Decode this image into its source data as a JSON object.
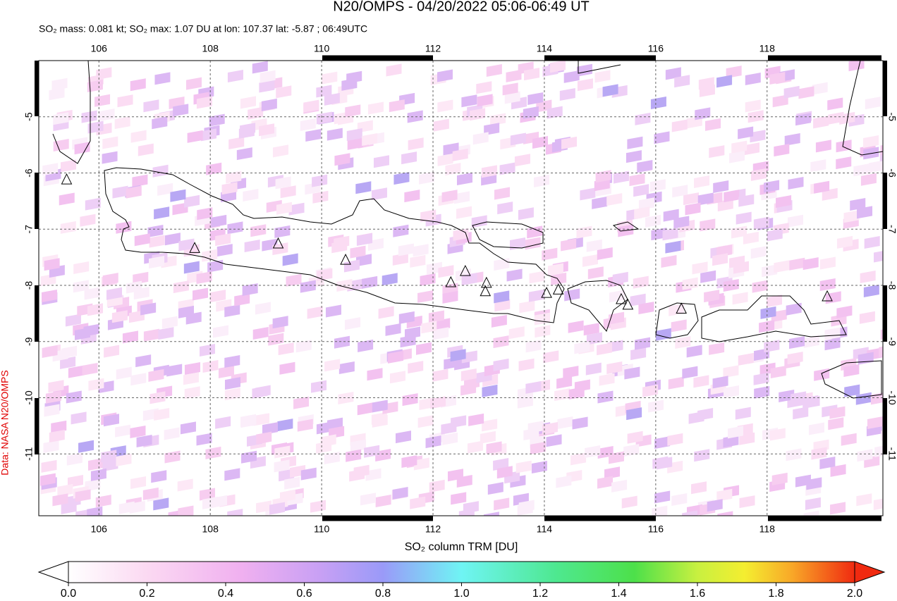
{
  "map": {
    "title": "N20/OMPS - 04/20/2022 05:06-06:49 UT",
    "subtitle": "SO₂ mass: 0.081 kt; SO₂ max: 1.07 DU at lon: 107.37 lat: -5.87 ; 06:49UTC",
    "side_note": "Data: NASA N20/OMPS",
    "xlim": [
      104.92,
      120.08
    ],
    "ylim": [
      -12.1,
      -4.0
    ],
    "xticks": [
      106,
      108,
      110,
      112,
      114,
      116,
      118
    ],
    "yticks": [
      -5,
      -6,
      -7,
      -8,
      -9,
      -10,
      -11
    ],
    "grid": true,
    "volcanoes": {
      "lon": [
        105.42,
        107.72,
        109.22,
        110.43,
        112.32,
        112.58,
        112.96,
        112.94,
        114.04,
        114.25,
        115.38,
        115.5,
        116.46,
        119.08
      ],
      "lat": [
        -6.12,
        -7.34,
        -7.26,
        -7.55,
        -7.95,
        -7.75,
        -7.96,
        -8.11,
        -8.14,
        -8.08,
        -8.25,
        -8.35,
        -8.42,
        -8.2
      ]
    },
    "colorbar": {
      "label": "SO₂ column TRM [DU]",
      "lim": [
        0,
        2
      ],
      "ticks": [
        {
          "value": 0,
          "label": "0.0"
        },
        {
          "value": 0.2,
          "label": "0.2"
        },
        {
          "value": 0.4,
          "label": "0.4"
        },
        {
          "value": 0.6,
          "label": "0.6"
        },
        {
          "value": 0.8,
          "label": "0.8"
        },
        {
          "value": 1,
          "label": "1.0"
        },
        {
          "value": 1.2,
          "label": "1.2"
        },
        {
          "value": 1.4,
          "label": "1.4"
        },
        {
          "value": 1.6,
          "label": "1.6"
        },
        {
          "value": 1.8,
          "label": "1.8"
        },
        {
          "value": 2,
          "label": "2.0"
        }
      ]
    }
  }
}
